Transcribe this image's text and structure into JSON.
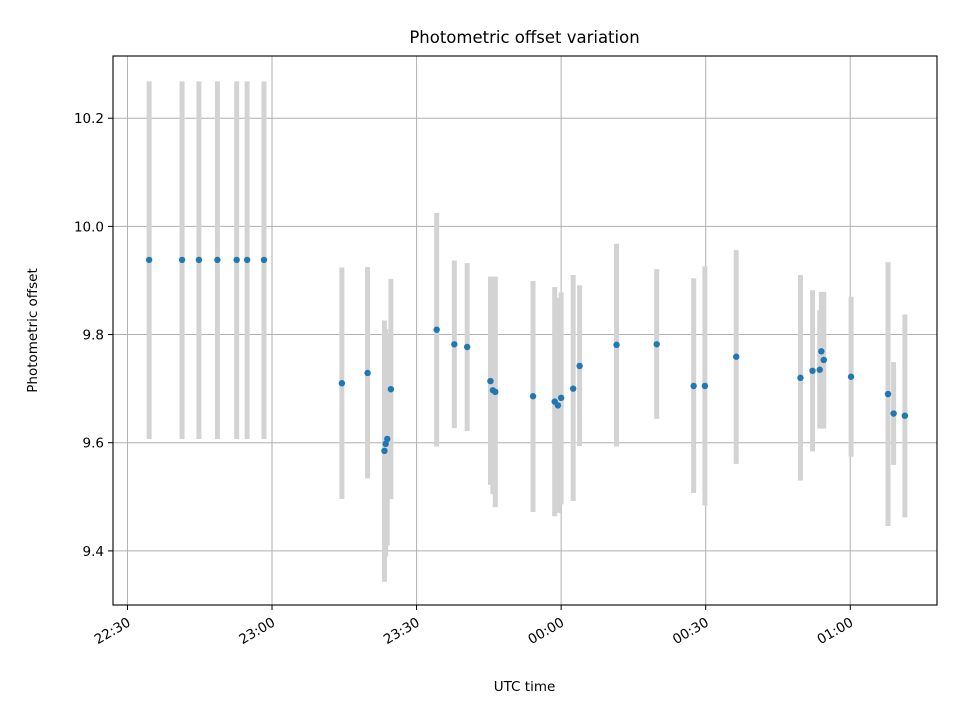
{
  "chart_data": {
    "type": "scatter",
    "title": "Photometric offset variation",
    "xlabel": "UTC time",
    "ylabel": "Photometric offset",
    "x_axis": {
      "kind": "time",
      "range": [
        "2024-01-01T22:27:00",
        "2024-01-02T01:18:00"
      ],
      "ticks": [
        {
          "value": "2024-01-01T22:30:00",
          "label": "22:30"
        },
        {
          "value": "2024-01-01T23:00:00",
          "label": "23:00"
        },
        {
          "value": "2024-01-01T23:30:00",
          "label": "23:30"
        },
        {
          "value": "2024-01-02T00:00:00",
          "label": "00:00"
        },
        {
          "value": "2024-01-02T00:30:00",
          "label": "00:30"
        },
        {
          "value": "2024-01-02T01:00:00",
          "label": "01:00"
        }
      ],
      "tick_label_rotation_deg": 30
    },
    "y_axis": {
      "range": [
        9.3,
        10.315
      ],
      "ticks": [
        {
          "value": 9.4,
          "label": "9.4"
        },
        {
          "value": 9.6,
          "label": "9.6"
        },
        {
          "value": 9.8,
          "label": "9.8"
        },
        {
          "value": 10.0,
          "label": "10.0"
        },
        {
          "value": 10.2,
          "label": "10.2"
        }
      ]
    },
    "grid": true,
    "point_color": "#1f77b4",
    "errorbar_color": "#d3d3d3",
    "points": [
      {
        "x": "2024-01-01T22:34:30",
        "y": 9.938,
        "lo": 9.607,
        "hi": 10.268
      },
      {
        "x": "2024-01-01T22:41:20",
        "y": 9.938,
        "lo": 9.607,
        "hi": 10.268
      },
      {
        "x": "2024-01-01T22:44:50",
        "y": 9.938,
        "lo": 9.607,
        "hi": 10.268
      },
      {
        "x": "2024-01-01T22:48:40",
        "y": 9.938,
        "lo": 9.607,
        "hi": 10.268
      },
      {
        "x": "2024-01-01T22:52:40",
        "y": 9.938,
        "lo": 9.607,
        "hi": 10.268
      },
      {
        "x": "2024-01-01T22:54:50",
        "y": 9.938,
        "lo": 9.607,
        "hi": 10.268
      },
      {
        "x": "2024-01-01T22:58:20",
        "y": 9.938,
        "lo": 9.607,
        "hi": 10.268
      },
      {
        "x": "2024-01-01T23:14:30",
        "y": 9.71,
        "lo": 9.496,
        "hi": 9.924
      },
      {
        "x": "2024-01-01T23:19:50",
        "y": 9.729,
        "lo": 9.534,
        "hi": 9.925
      },
      {
        "x": "2024-01-01T23:23:20",
        "y": 9.585,
        "lo": 9.343,
        "hi": 9.826
      },
      {
        "x": "2024-01-01T23:23:35",
        "y": 9.598,
        "lo": 9.39,
        "hi": 9.81
      },
      {
        "x": "2024-01-01T23:23:55",
        "y": 9.607,
        "lo": 9.41,
        "hi": 9.8
      },
      {
        "x": "2024-01-01T23:24:40",
        "y": 9.699,
        "lo": 9.496,
        "hi": 9.903
      },
      {
        "x": "2024-01-01T23:34:10",
        "y": 9.809,
        "lo": 9.593,
        "hi": 10.025
      },
      {
        "x": "2024-01-01T23:37:50",
        "y": 9.782,
        "lo": 9.627,
        "hi": 9.937
      },
      {
        "x": "2024-01-01T23:40:30",
        "y": 9.777,
        "lo": 9.622,
        "hi": 9.932
      },
      {
        "x": "2024-01-01T23:45:20",
        "y": 9.714,
        "lo": 9.522,
        "hi": 9.907
      },
      {
        "x": "2024-01-01T23:45:50",
        "y": 9.697,
        "lo": 9.505,
        "hi": 9.89
      },
      {
        "x": "2024-01-01T23:46:20",
        "y": 9.694,
        "lo": 9.481,
        "hi": 9.907
      },
      {
        "x": "2024-01-01T23:54:10",
        "y": 9.686,
        "lo": 9.472,
        "hi": 9.899
      },
      {
        "x": "2024-01-01T23:58:40",
        "y": 9.676,
        "lo": 9.464,
        "hi": 9.888
      },
      {
        "x": "2024-01-01T23:59:20",
        "y": 9.669,
        "lo": 9.47,
        "hi": 9.868
      },
      {
        "x": "2024-01-02T00:00:00",
        "y": 9.683,
        "lo": 9.486,
        "hi": 9.878
      },
      {
        "x": "2024-01-02T00:02:30",
        "y": 9.7,
        "lo": 9.492,
        "hi": 9.91
      },
      {
        "x": "2024-01-02T00:03:50",
        "y": 9.742,
        "lo": 9.594,
        "hi": 9.891
      },
      {
        "x": "2024-01-02T00:11:30",
        "y": 9.781,
        "lo": 9.593,
        "hi": 9.968
      },
      {
        "x": "2024-01-02T00:19:50",
        "y": 9.782,
        "lo": 9.644,
        "hi": 9.921
      },
      {
        "x": "2024-01-02T00:27:30",
        "y": 9.705,
        "lo": 9.507,
        "hi": 9.904
      },
      {
        "x": "2024-01-02T00:29:50",
        "y": 9.705,
        "lo": 9.484,
        "hi": 9.926
      },
      {
        "x": "2024-01-02T00:36:20",
        "y": 9.759,
        "lo": 9.561,
        "hi": 9.956
      },
      {
        "x": "2024-01-02T00:49:40",
        "y": 9.72,
        "lo": 9.53,
        "hi": 9.91
      },
      {
        "x": "2024-01-02T00:52:10",
        "y": 9.733,
        "lo": 9.584,
        "hi": 9.882
      },
      {
        "x": "2024-01-02T00:53:40",
        "y": 9.735,
        "lo": 9.626,
        "hi": 9.845
      },
      {
        "x": "2024-01-02T00:54:00",
        "y": 9.769,
        "lo": 9.658,
        "hi": 9.879
      },
      {
        "x": "2024-01-02T00:54:30",
        "y": 9.753,
        "lo": 9.626,
        "hi": 9.879
      },
      {
        "x": "2024-01-02T01:00:10",
        "y": 9.722,
        "lo": 9.574,
        "hi": 9.87
      },
      {
        "x": "2024-01-02T01:07:50",
        "y": 9.69,
        "lo": 9.446,
        "hi": 9.934
      },
      {
        "x": "2024-01-02T01:09:00",
        "y": 9.654,
        "lo": 9.559,
        "hi": 9.749
      },
      {
        "x": "2024-01-02T01:11:20",
        "y": 9.65,
        "lo": 9.462,
        "hi": 9.837
      }
    ]
  }
}
